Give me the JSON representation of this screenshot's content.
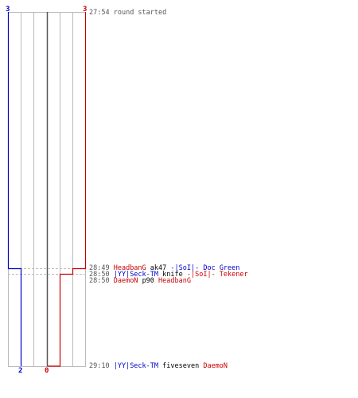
{
  "colors": {
    "team_blue": "#0000cc",
    "team_red": "#cc0000",
    "grid_line": "#bbbbbb",
    "center_line": "#555555",
    "text_gray": "#555555"
  },
  "scores": {
    "top_left": "3",
    "top_right": "3",
    "bottom_blue": "2",
    "bottom_red": "0"
  },
  "start": {
    "time": "27:54",
    "message": "round started"
  },
  "kills": [
    {
      "time": "28:49",
      "killer": "HeadbanG",
      "killer_team": "red",
      "weapon": "ak47",
      "victim": "-|SoI|- Doc Green",
      "victim_team": "blue"
    },
    {
      "time": "28:50",
      "killer": "|YY|Seck-TM",
      "killer_team": "blue",
      "weapon": "knife",
      "victim": "-|SoI|- Tekener",
      "victim_team": "red"
    },
    {
      "time": "28:50",
      "killer": "DaemoN",
      "killer_team": "red",
      "weapon": "p90",
      "victim": "HeadbanG",
      "victim_team": "red"
    },
    {
      "time": "29:10",
      "killer": "|YY|Seck-TM",
      "killer_team": "blue",
      "weapon": "fiveseven",
      "victim": "DaemoN",
      "victim_team": "red"
    }
  ]
}
